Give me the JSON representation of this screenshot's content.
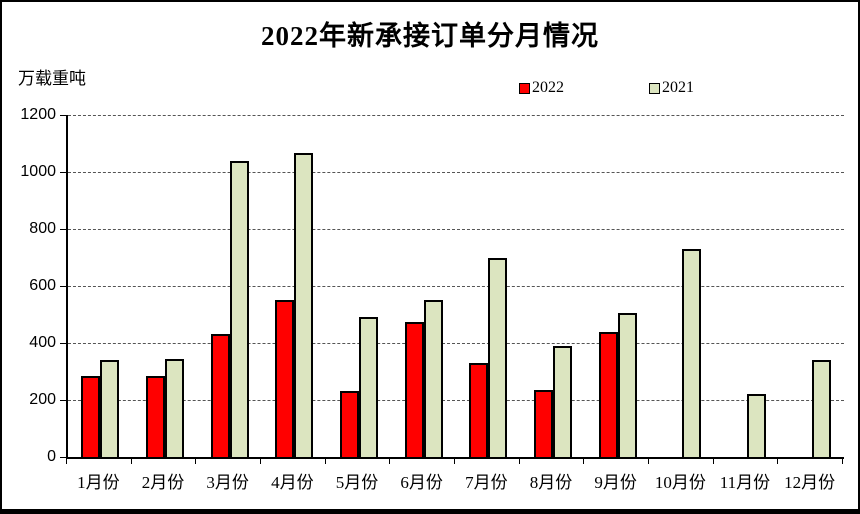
{
  "window": {
    "title": "2022年新承接订单分月情况"
  },
  "chart_data": {
    "type": "bar",
    "title": "2022年新承接订单分月情况",
    "unit_label": "万载重吨",
    "categories": [
      "1月份",
      "2月份",
      "3月份",
      "4月份",
      "5月份",
      "6月份",
      "7月份",
      "8月份",
      "9月份",
      "10月份",
      "11月份",
      "12月份"
    ],
    "series": [
      {
        "name": "2022",
        "color": "#ff0000",
        "values": [
          285,
          285,
          430,
          550,
          230,
          475,
          330,
          235,
          440,
          null,
          null,
          null
        ]
      },
      {
        "name": "2021",
        "color": "#dce5c0",
        "values": [
          340,
          345,
          1040,
          1065,
          490,
          550,
          700,
          390,
          505,
          730,
          220,
          340
        ]
      }
    ],
    "ylim": [
      0,
      1200
    ],
    "yticks": [
      0,
      200,
      400,
      600,
      800,
      1000,
      1200
    ],
    "grid": "horizontal-dashed",
    "legend_position": "top-center",
    "axis_color": "#000000",
    "gridline_color": "#555555",
    "background_color": "#ffffff"
  }
}
